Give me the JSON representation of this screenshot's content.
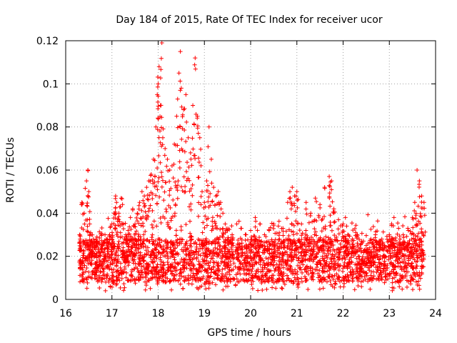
{
  "chart_data": {
    "type": "scatter",
    "title": "Day 184 of 2015, Rate Of TEC Index for receiver ucor",
    "xlabel": "GPS time / hours",
    "ylabel": "ROTI / TECUs",
    "xlim": [
      16,
      24
    ],
    "ylim": [
      0,
      0.12
    ],
    "x_ticks": [
      "16",
      "17",
      "18",
      "19",
      "20",
      "21",
      "22",
      "23",
      "24"
    ],
    "y_ticks": [
      "0",
      "0.02",
      "0.04",
      "0.06",
      "0.08",
      "0.1",
      "0.12"
    ],
    "grid": true,
    "marker": "+",
    "color": "#ff0000",
    "series": [
      {
        "name": "ROTI",
        "x": [
          16.3,
          16.35,
          16.4,
          16.45,
          16.48,
          16.5,
          16.52,
          16.55,
          16.6,
          16.65,
          16.7,
          16.75,
          16.8,
          16.85,
          16.9,
          16.95,
          17.0,
          17.05,
          17.08,
          17.1,
          17.15,
          17.2,
          17.25,
          17.3,
          17.35,
          17.4,
          17.45,
          17.5,
          17.55,
          17.6,
          17.65,
          17.7,
          17.75,
          17.8,
          17.85,
          17.9,
          17.95,
          17.98,
          18.0,
          18.02,
          18.05,
          18.08,
          18.1,
          18.15,
          18.2,
          18.25,
          18.3,
          18.35,
          18.4,
          18.45,
          18.48,
          18.5,
          18.55,
          18.6,
          18.65,
          18.7,
          18.75,
          18.8,
          18.85,
          18.9,
          18.95,
          19.0,
          19.05,
          19.1,
          19.15,
          19.2,
          19.25,
          19.3,
          19.35,
          19.4,
          19.45,
          19.5,
          19.6,
          19.7,
          19.8,
          19.9,
          20.0,
          20.1,
          20.2,
          20.3,
          20.4,
          20.5,
          20.6,
          20.7,
          20.8,
          20.85,
          20.9,
          20.95,
          21.0,
          21.1,
          21.2,
          21.3,
          21.4,
          21.5,
          21.6,
          21.7,
          21.75,
          21.8,
          21.9,
          22.0,
          22.05,
          22.1,
          22.2,
          22.3,
          22.4,
          22.5,
          22.6,
          22.7,
          22.8,
          22.9,
          23.0,
          23.05,
          23.1,
          23.2,
          23.3,
          23.4,
          23.5,
          23.55,
          23.6,
          23.65,
          23.7,
          23.75
        ],
        "y": [
          0.03,
          0.045,
          0.04,
          0.055,
          0.06,
          0.05,
          0.035,
          0.03,
          0.028,
          0.025,
          0.022,
          0.02,
          0.025,
          0.03,
          0.028,
          0.03,
          0.035,
          0.04,
          0.048,
          0.045,
          0.04,
          0.047,
          0.035,
          0.03,
          0.032,
          0.038,
          0.042,
          0.035,
          0.04,
          0.045,
          0.05,
          0.048,
          0.052,
          0.055,
          0.058,
          0.065,
          0.08,
          0.095,
          0.1,
          0.108,
          0.09,
          0.119,
          0.075,
          0.07,
          0.065,
          0.06,
          0.062,
          0.072,
          0.085,
          0.105,
          0.115,
          0.098,
          0.088,
          0.095,
          0.075,
          0.068,
          0.09,
          0.112,
          0.085,
          0.075,
          0.05,
          0.045,
          0.055,
          0.08,
          0.065,
          0.052,
          0.048,
          0.05,
          0.045,
          0.04,
          0.035,
          0.032,
          0.03,
          0.035,
          0.033,
          0.03,
          0.032,
          0.038,
          0.035,
          0.03,
          0.032,
          0.035,
          0.034,
          0.033,
          0.045,
          0.05,
          0.052,
          0.048,
          0.05,
          0.035,
          0.045,
          0.04,
          0.047,
          0.044,
          0.052,
          0.057,
          0.055,
          0.042,
          0.037,
          0.035,
          0.038,
          0.03,
          0.028,
          0.03,
          0.027,
          0.025,
          0.028,
          0.03,
          0.027,
          0.025,
          0.03,
          0.035,
          0.038,
          0.033,
          0.03,
          0.033,
          0.038,
          0.045,
          0.06,
          0.055,
          0.048,
          0.045
        ]
      }
    ]
  }
}
